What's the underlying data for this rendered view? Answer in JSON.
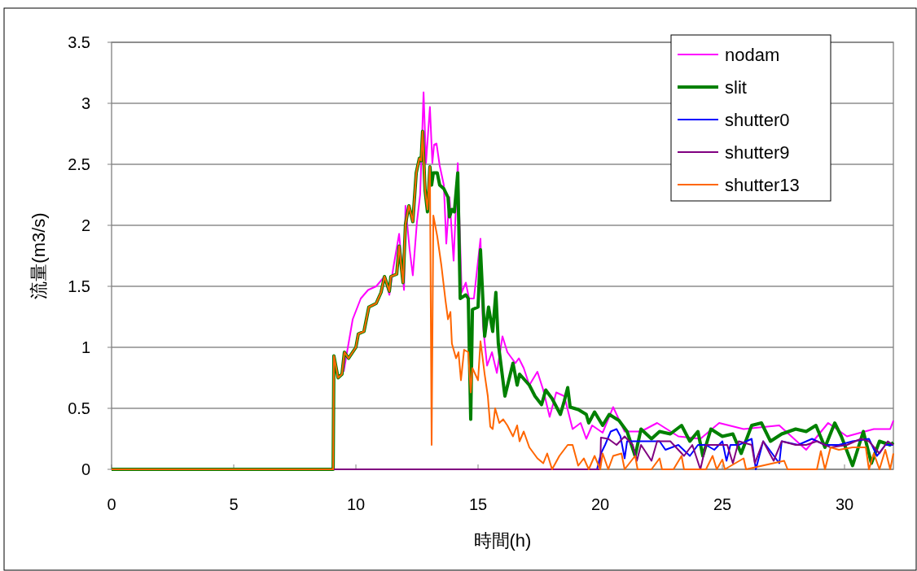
{
  "chart_data": {
    "type": "line",
    "xlabel": "時間(h)",
    "ylabel": "流量(m3/s)",
    "xlim": [
      0,
      32
    ],
    "xticks": [
      0,
      5,
      10,
      15,
      20,
      25,
      30
    ],
    "ylim": [
      0,
      3.5
    ],
    "yticks": [
      0,
      0.5,
      1,
      1.5,
      2,
      2.5,
      3,
      3.5
    ],
    "grid": "y",
    "legend": "top right",
    "marker": "none",
    "line_style": "solid",
    "series": [
      {
        "name": "nodam",
        "color": "#ff00ff",
        "x": [
          9.5,
          9.87,
          10.2,
          10.5,
          10.83,
          11.17,
          11.37,
          11.53,
          11.77,
          11.97,
          12.03,
          12.2,
          12.33,
          12.5,
          12.63,
          12.77,
          12.87,
          13.03,
          13.13,
          13.2,
          13.3,
          13.43,
          13.6,
          13.7,
          13.83,
          14.0,
          14.17,
          14.33,
          14.5,
          14.63,
          14.83,
          15.1,
          15.2,
          15.37,
          15.57,
          15.77,
          16.0,
          16.2,
          16.53,
          16.67,
          16.87,
          17.1,
          17.43,
          17.67,
          17.93,
          18.2,
          18.53,
          18.87,
          19.2,
          19.43,
          19.67,
          20.1,
          20.53,
          21.0,
          21.67,
          22.33,
          23.2,
          24.1,
          24.87,
          25.87,
          27.33,
          28.43,
          29.33,
          30.1,
          31.2,
          31.87,
          32
        ],
        "values": [
          0.8,
          1.23,
          1.4,
          1.47,
          1.5,
          1.58,
          1.43,
          1.65,
          1.93,
          1.47,
          2.16,
          1.8,
          1.59,
          2.03,
          2.25,
          3.09,
          2.51,
          2.97,
          2.51,
          2.66,
          2.67,
          2.49,
          2.33,
          1.85,
          2.23,
          1.71,
          2.51,
          1.45,
          1.53,
          1.4,
          1.4,
          1.89,
          1.18,
          0.85,
          0.96,
          0.79,
          1.09,
          0.96,
          0.87,
          0.91,
          0.83,
          0.69,
          0.8,
          0.65,
          0.43,
          0.63,
          0.6,
          0.33,
          0.38,
          0.25,
          0.36,
          0.3,
          0.51,
          0.31,
          0.31,
          0.38,
          0.27,
          0.25,
          0.38,
          0.33,
          0.36,
          0.16,
          0.38,
          0.27,
          0.33,
          0.33,
          0.4
        ]
      },
      {
        "name": "slit",
        "color": "#008000",
        "x": [
          0,
          9.07,
          9.1,
          9.27,
          9.43,
          9.53,
          9.7,
          10.0,
          10.1,
          10.33,
          10.53,
          10.83,
          11.03,
          11.17,
          11.37,
          11.43,
          11.67,
          11.77,
          11.93,
          12.03,
          12.17,
          12.33,
          12.47,
          12.6,
          12.67,
          12.73,
          12.83,
          12.93,
          13.03,
          13.1,
          13.17,
          13.33,
          13.43,
          13.6,
          13.77,
          13.83,
          13.93,
          14.03,
          14.17,
          14.27,
          14.5,
          14.6,
          14.7,
          14.77,
          15.0,
          15.1,
          15.27,
          15.43,
          15.6,
          15.73,
          15.83,
          16.1,
          16.43,
          16.6,
          16.7,
          17.1,
          17.33,
          17.6,
          17.77,
          18.03,
          18.37,
          18.53,
          18.67,
          18.77,
          19.1,
          19.43,
          19.53,
          19.77,
          20.1,
          20.37,
          20.77,
          21.1,
          21.43,
          21.67,
          22.1,
          22.43,
          22.87,
          23.33,
          23.67,
          24.0,
          24.2,
          24.53,
          25.0,
          25.43,
          25.77,
          26.2,
          26.6,
          26.97,
          27.43,
          28.0,
          28.43,
          28.83,
          29.2,
          29.6,
          29.87,
          30.33,
          30.77,
          31.1,
          31.43,
          31.87,
          32
        ],
        "values": [
          0,
          0,
          0.93,
          0.75,
          0.78,
          0.96,
          0.91,
          1.0,
          1.11,
          1.13,
          1.33,
          1.36,
          1.45,
          1.58,
          1.46,
          1.58,
          1.6,
          1.83,
          1.53,
          2.01,
          2.16,
          2.03,
          2.43,
          2.55,
          2.53,
          2.77,
          2.29,
          2.11,
          2.48,
          2.33,
          2.43,
          2.43,
          2.33,
          2.3,
          2.23,
          2.07,
          2.13,
          2.11,
          2.43,
          1.4,
          1.43,
          1.4,
          0.41,
          1.31,
          1.33,
          1.8,
          1.09,
          1.33,
          1.13,
          1.45,
          1.03,
          0.6,
          0.87,
          0.69,
          0.78,
          0.69,
          0.6,
          0.53,
          0.65,
          0.58,
          0.45,
          0.56,
          0.67,
          0.51,
          0.49,
          0.45,
          0.38,
          0.47,
          0.36,
          0.45,
          0.4,
          0.31,
          0.11,
          0.33,
          0.25,
          0.31,
          0.29,
          0.36,
          0.23,
          0.31,
          0.11,
          0.33,
          0.27,
          0.29,
          0.13,
          0.36,
          0.38,
          0.23,
          0.29,
          0.33,
          0.31,
          0.36,
          0.18,
          0.38,
          0.27,
          0.03,
          0.31,
          0.05,
          0.23,
          0.2,
          0.22
        ]
      },
      {
        "name": "shutter0",
        "color": "#0000ff",
        "x": [
          0,
          19.87,
          20.03,
          20.2,
          20.43,
          20.67,
          20.83,
          21.0,
          21.1,
          21.67,
          22.43,
          22.67,
          23.2,
          23.67,
          24.0,
          24.33,
          24.67,
          25.0,
          25.17,
          25.33,
          25.67,
          26.2,
          26.37,
          26.67,
          27.33,
          27.43,
          28.1,
          28.67,
          29.2,
          29.77,
          30.33,
          31.0,
          31.33,
          31.67,
          32
        ],
        "values": [
          0,
          0,
          0.13,
          0.2,
          0.31,
          0.33,
          0.27,
          0.09,
          0.23,
          0.23,
          0.23,
          0.16,
          0.2,
          0.11,
          0.2,
          0.2,
          0.16,
          0.23,
          0.07,
          0.2,
          0.2,
          0.25,
          0,
          0.23,
          0.05,
          0.23,
          0.2,
          0.25,
          0.2,
          0.2,
          0.23,
          0.25,
          0.11,
          0.2,
          0.2
        ]
      },
      {
        "name": "shutter9",
        "color": "#800080",
        "x": [
          0,
          20.0,
          20.03,
          20.33,
          20.67,
          21.0,
          21.33,
          21.5,
          21.67,
          22.1,
          22.33,
          22.87,
          23.43,
          23.77,
          24.1,
          24.33,
          24.77,
          25.2,
          25.43,
          25.67,
          26.2,
          26.33,
          26.67,
          27.1,
          27.43,
          28.0,
          28.43,
          28.87,
          29.43,
          30.1,
          30.67,
          31.0,
          31.43,
          31.77,
          32
        ],
        "values": [
          0,
          0,
          0.26,
          0.25,
          0.2,
          0.27,
          0.2,
          0.07,
          0.2,
          0.07,
          0.23,
          0.23,
          0.11,
          0.2,
          0,
          0.2,
          0.2,
          0.2,
          0.05,
          0.23,
          0.2,
          0.05,
          0.23,
          0.07,
          0.23,
          0.2,
          0.2,
          0.23,
          0.18,
          0.2,
          0.25,
          0.23,
          0.13,
          0.23,
          0.2
        ]
      },
      {
        "name": "shutter13",
        "color": "#ff6600",
        "x": [
          0,
          9.07,
          9.1,
          9.27,
          9.43,
          9.53,
          9.7,
          10.0,
          10.1,
          10.33,
          10.53,
          10.83,
          11.03,
          11.17,
          11.37,
          11.43,
          11.67,
          11.77,
          11.93,
          12.03,
          12.17,
          12.33,
          12.47,
          12.6,
          12.67,
          12.73,
          12.83,
          12.93,
          13.03,
          13.1,
          13.17,
          13.33,
          13.5,
          13.67,
          13.77,
          13.87,
          13.93,
          14.1,
          14.2,
          14.3,
          14.43,
          14.6,
          14.7,
          14.77,
          15.0,
          15.1,
          15.27,
          15.4,
          15.5,
          15.6,
          15.7,
          15.87,
          16.03,
          16.2,
          16.43,
          16.6,
          16.7,
          16.87,
          17.1,
          17.43,
          17.67,
          17.83,
          18.03,
          18.33,
          18.67,
          18.87,
          19.1,
          19.33,
          19.53,
          19.77,
          20.0,
          20.1,
          20.33,
          20.53,
          20.87,
          21.0,
          21.43,
          21.53,
          22.1,
          22.43,
          22.53,
          23.0,
          23.33,
          23.43,
          24.33,
          24.6,
          24.77,
          25.0,
          25.1,
          25.87,
          25.97,
          27.53,
          27.67,
          28.87,
          29.03,
          29.2,
          29.43,
          29.77,
          30.33,
          30.87,
          31.0,
          31.2,
          31.43,
          31.67,
          31.87,
          32
        ],
        "values": [
          0,
          0,
          0.93,
          0.75,
          0.78,
          0.96,
          0.91,
          1.0,
          1.11,
          1.13,
          1.33,
          1.36,
          1.45,
          1.58,
          1.46,
          1.58,
          1.6,
          1.83,
          1.53,
          2.01,
          2.16,
          2.03,
          2.43,
          2.55,
          2.53,
          2.77,
          2.29,
          2.13,
          2.48,
          0.2,
          2.08,
          1.91,
          1.67,
          1.38,
          1.23,
          1.29,
          1.03,
          0.91,
          0.96,
          0.73,
          0.98,
          0.96,
          0.63,
          0.83,
          0.73,
          1.05,
          0.78,
          0.6,
          0.35,
          0.33,
          0.5,
          0.38,
          0.41,
          0.36,
          0.27,
          0.36,
          0.23,
          0.31,
          0.18,
          0.09,
          0.05,
          0.13,
          0,
          0.11,
          0.2,
          0.2,
          0.03,
          0.09,
          0,
          0.11,
          0,
          0.13,
          0,
          0.11,
          0.13,
          0,
          0.11,
          0,
          0,
          0.09,
          0,
          0,
          0.11,
          0,
          0,
          0.11,
          0,
          0.08,
          0,
          0.09,
          0,
          0.07,
          0,
          0,
          0.15,
          0,
          0.18,
          0.16,
          0.18,
          0.18,
          0,
          0.13,
          0,
          0.16,
          0,
          0.13
        ]
      }
    ]
  }
}
